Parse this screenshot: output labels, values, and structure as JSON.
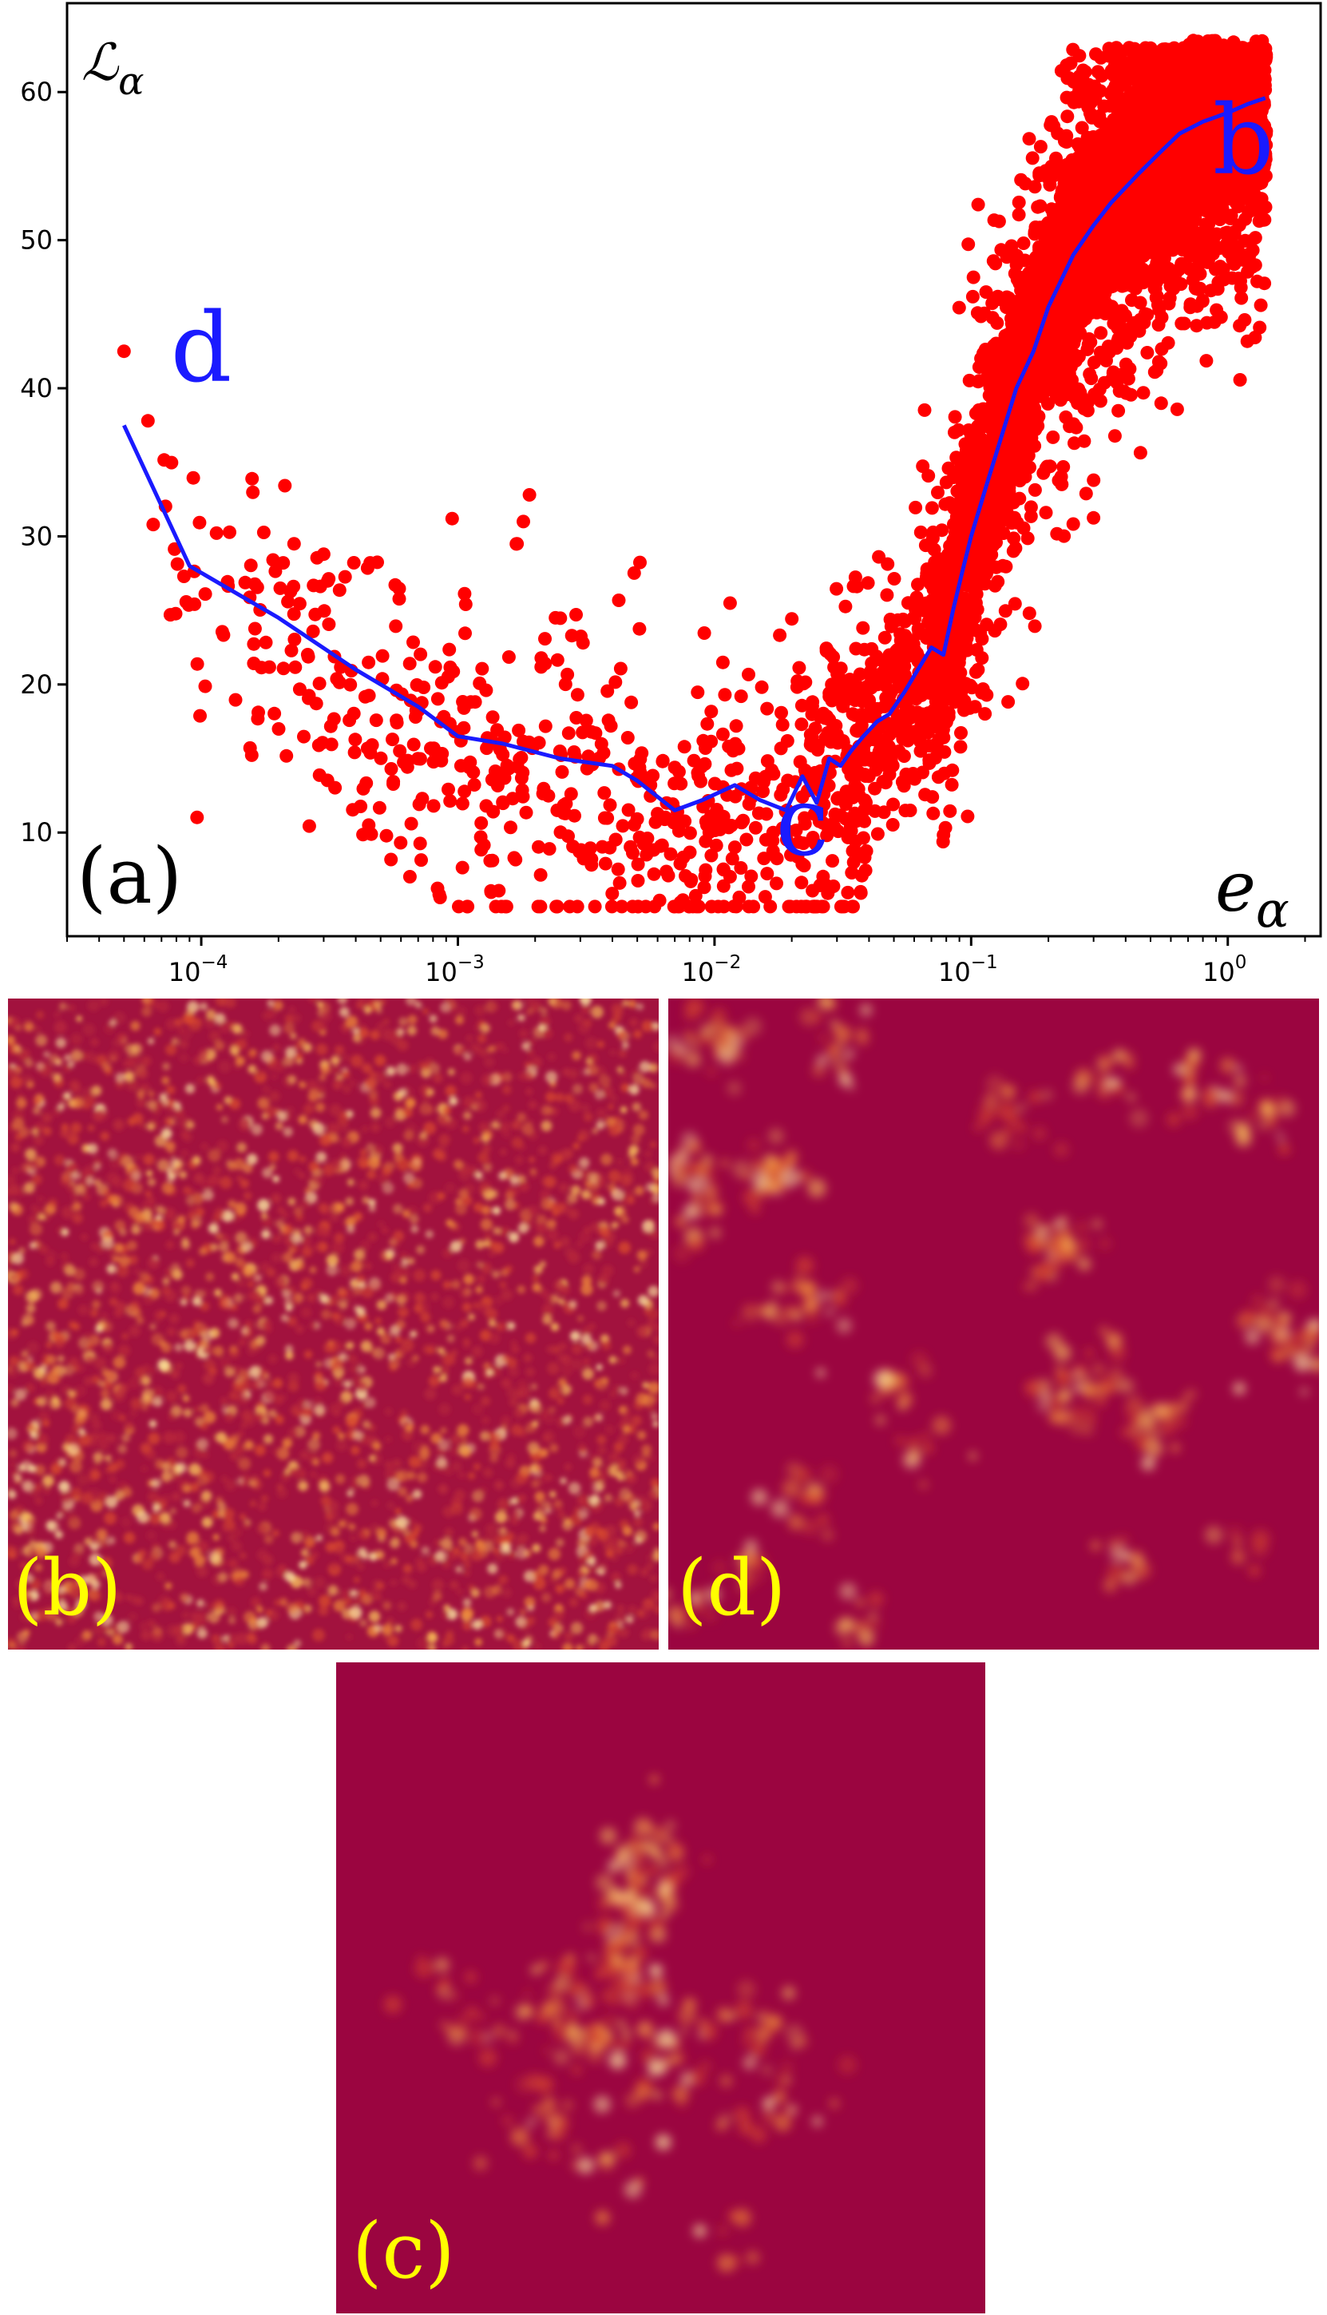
{
  "colors": {
    "scatter": "#ff0000",
    "line": "#1a1aff",
    "point_label": "#1a1aff",
    "panel_label": "#ffff00",
    "heatmap_bg": "#9b0540",
    "heatmap_hot": "#ffe49a"
  },
  "panels": {
    "a": {
      "label": "(a)"
    },
    "b": {
      "label": "(b)"
    },
    "c": {
      "label": "(c)"
    },
    "d": {
      "label": "(d)"
    }
  },
  "chart_data": {
    "type": "scatter",
    "title": "",
    "xlabel": "e_α",
    "ylabel": "ℒ_α",
    "xscale": "log",
    "xlim": [
      3e-05,
      2.3
    ],
    "ylim": [
      3,
      66
    ],
    "grid": false,
    "xticks": [
      0.0001,
      0.001,
      0.01,
      0.1,
      1
    ],
    "xtick_labels": [
      "10",
      "10",
      "10",
      "10",
      "10"
    ],
    "xtick_exponents": [
      "−4",
      "−3",
      "−2",
      "−1",
      "0"
    ],
    "yticks": [
      10,
      20,
      30,
      40,
      50,
      60
    ],
    "ytick_labels": [
      "10",
      "20",
      "30",
      "40",
      "50",
      "60"
    ],
    "annotations": [
      {
        "text": "d",
        "x": 0.0001,
        "y": 40.5
      },
      {
        "text": "c",
        "x": 0.022,
        "y": 8.5
      },
      {
        "text": "b",
        "x": 1.15,
        "y": 54.5
      }
    ],
    "series": [
      {
        "type": "line",
        "x": [
          5e-05,
          9e-05,
          0.0002,
          0.0004,
          0.0007,
          0.001,
          0.0015,
          0.0025,
          0.004,
          0.005,
          0.007,
          0.009,
          0.012,
          0.015,
          0.019,
          0.022,
          0.025,
          0.028,
          0.031,
          0.034,
          0.038,
          0.043,
          0.048,
          0.055,
          0.062,
          0.07,
          0.078,
          0.085,
          0.092,
          0.1,
          0.115,
          0.13,
          0.15,
          0.175,
          0.2,
          0.25,
          0.3,
          0.35,
          0.45,
          0.55,
          0.65,
          0.8,
          1.0,
          1.2,
          1.4
        ],
        "y": [
          37.5,
          28,
          24.5,
          21,
          18.5,
          16.5,
          16,
          15,
          14.5,
          13.5,
          11.5,
          12.2,
          13.2,
          12.2,
          11.5,
          13.8,
          12.0,
          15.0,
          14.5,
          15.5,
          16.5,
          17.5,
          18.0,
          19.5,
          21.0,
          22.5,
          22.0,
          25.0,
          27.5,
          30.0,
          33.5,
          36.5,
          40.0,
          42.5,
          45.5,
          49.0,
          51.0,
          52.5,
          54.5,
          56.0,
          57.2,
          58.0,
          58.6,
          59.2,
          59.6
        ]
      }
    ]
  }
}
